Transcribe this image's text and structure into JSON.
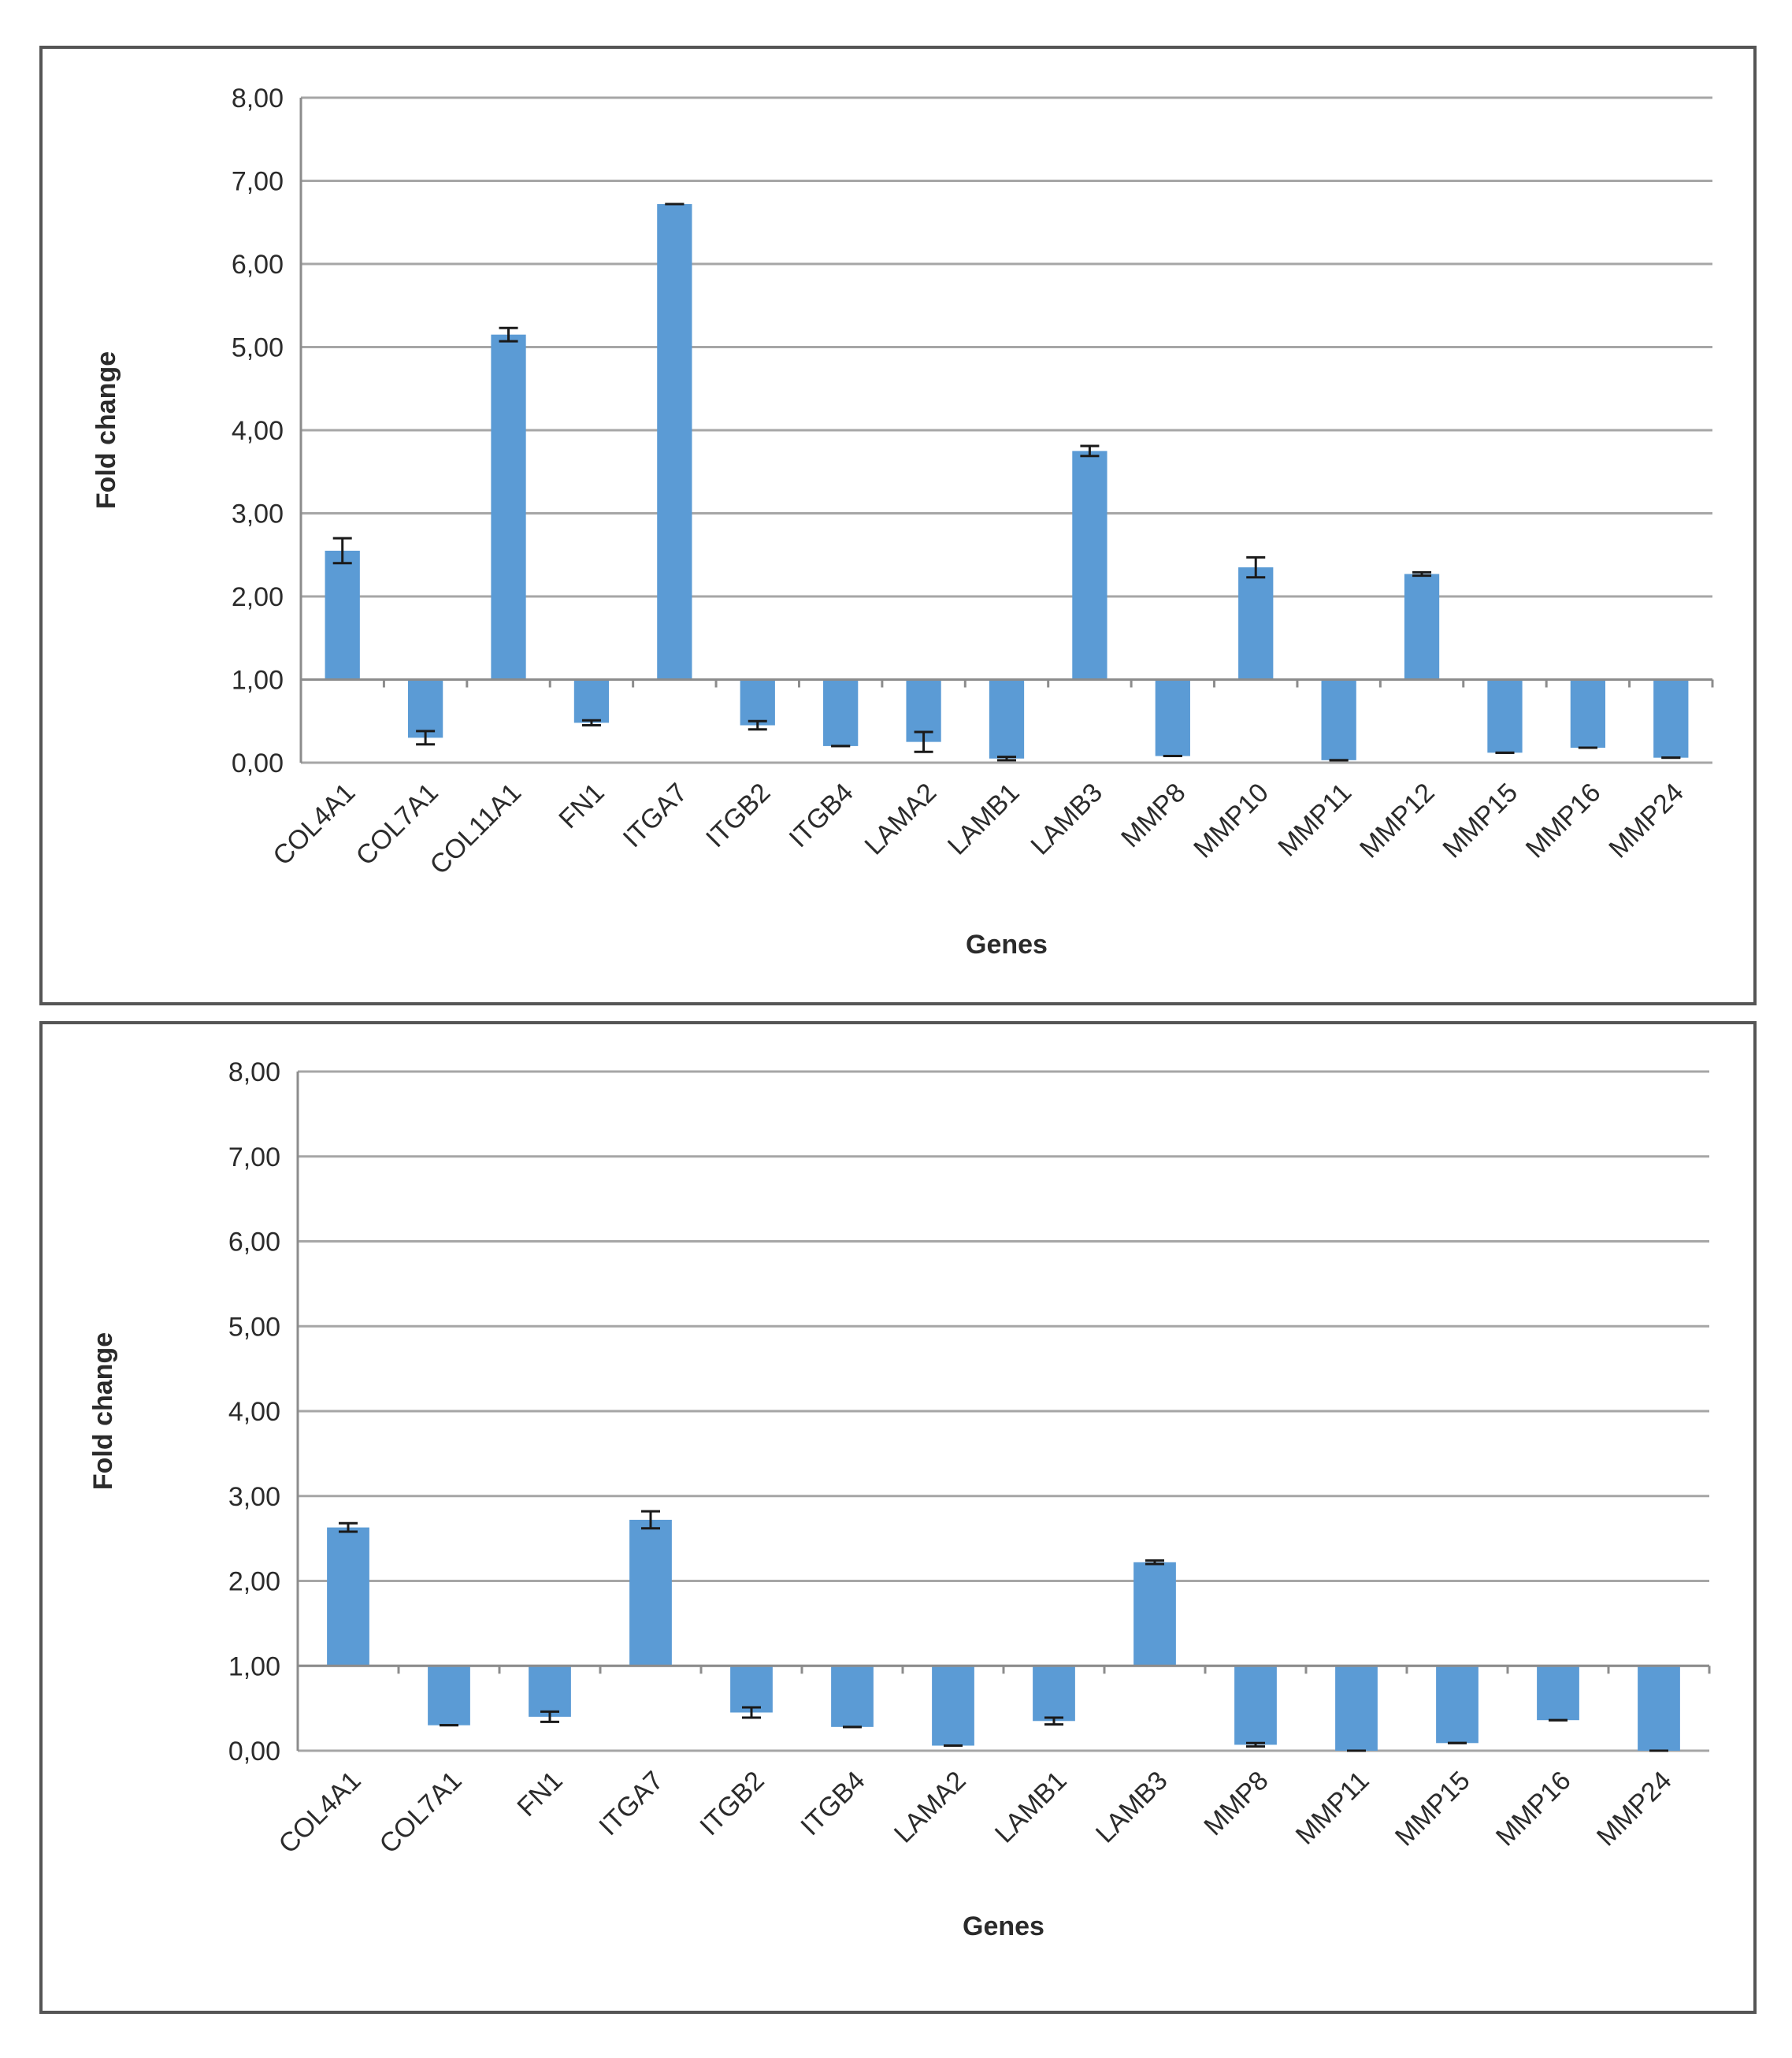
{
  "colors": {
    "bar": "#5b9bd5",
    "grid": "#a6a6a6",
    "axis": "#8c8c8c",
    "error": "#1a1a1a",
    "text": "#2b2b2b"
  },
  "chart_data": [
    {
      "type": "bar",
      "baseline": 1.0,
      "xlabel": "Genes",
      "ylabel": "Fold change",
      "ylim": [
        0,
        8
      ],
      "yticks": [
        "0,00",
        "1,00",
        "2,00",
        "3,00",
        "4,00",
        "5,00",
        "6,00",
        "7,00",
        "8,00"
      ],
      "grid": true,
      "categories": [
        "COL4A1",
        "COL7A1",
        "COL11A1",
        "FN1",
        "ITGA7",
        "ITGB2",
        "ITGB4",
        "LAMA2",
        "LAMB1",
        "LAMB3",
        "MMP8",
        "MMP10",
        "MMP11",
        "MMP12",
        "MMP15",
        "MMP16",
        "MMP24"
      ],
      "values": [
        2.55,
        0.3,
        5.15,
        0.48,
        6.72,
        0.45,
        0.2,
        0.25,
        0.05,
        3.75,
        0.08,
        2.35,
        0.03,
        2.27,
        0.12,
        0.18,
        0.06
      ],
      "errors": [
        0.15,
        0.08,
        0.08,
        0.03,
        0.0,
        0.05,
        0.0,
        0.12,
        0.02,
        0.06,
        0.0,
        0.12,
        0.0,
        0.02,
        0.0,
        0.0,
        0.0
      ]
    },
    {
      "type": "bar",
      "baseline": 1.0,
      "xlabel": "Genes",
      "ylabel": "Fold change",
      "ylim": [
        0,
        8
      ],
      "yticks": [
        "0,00",
        "1,00",
        "2,00",
        "3,00",
        "4,00",
        "5,00",
        "6,00",
        "7,00",
        "8,00"
      ],
      "grid": true,
      "categories": [
        "COL4A1",
        "COL7A1",
        "FN1",
        "ITGA7",
        "ITGB2",
        "ITGB4",
        "LAMA2",
        "LAMB1",
        "LAMB3",
        "MMP8",
        "MMP11",
        "MMP15",
        "MMP16",
        "MMP24"
      ],
      "values": [
        2.63,
        0.3,
        0.4,
        2.72,
        0.45,
        0.28,
        0.06,
        0.35,
        2.22,
        0.07,
        0.0,
        0.09,
        0.36,
        0.0
      ],
      "errors": [
        0.05,
        0.0,
        0.06,
        0.1,
        0.06,
        0.0,
        0.0,
        0.04,
        0.02,
        0.02,
        0.0,
        0.0,
        0.0,
        0.0
      ]
    }
  ]
}
